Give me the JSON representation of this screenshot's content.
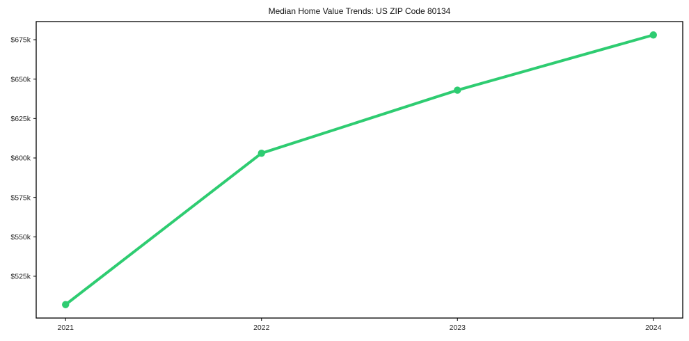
{
  "chart_data": {
    "type": "line",
    "title": "Median Home Value Trends: US ZIP Code 80134",
    "xlabel": "",
    "ylabel": "",
    "x": [
      2021,
      2022,
      2023,
      2024
    ],
    "series": [
      {
        "name": "Median Home Value",
        "values": [
          507000,
          603000,
          643000,
          678000
        ],
        "color": "#2ecc71",
        "marker": "circle"
      }
    ],
    "x_ticks": [
      {
        "value": 2021,
        "label": "2021"
      },
      {
        "value": 2022,
        "label": "2022"
      },
      {
        "value": 2023,
        "label": "2023"
      },
      {
        "value": 2024,
        "label": "2024"
      }
    ],
    "y_ticks": [
      {
        "value": 525000,
        "label": "$525k"
      },
      {
        "value": 550000,
        "label": "$550k"
      },
      {
        "value": 575000,
        "label": "$575k"
      },
      {
        "value": 600000,
        "label": "$600k"
      },
      {
        "value": 625000,
        "label": "$625k"
      },
      {
        "value": 650000,
        "label": "$650k"
      },
      {
        "value": 675000,
        "label": "$675k"
      }
    ],
    "xlim": [
      2020.85,
      2024.15
    ],
    "ylim": [
      498500,
      686500
    ],
    "grid": false,
    "legend_position": "none",
    "frame_color": "#000000",
    "tick_label_color": "#262626",
    "background_color": "#ffffff"
  }
}
